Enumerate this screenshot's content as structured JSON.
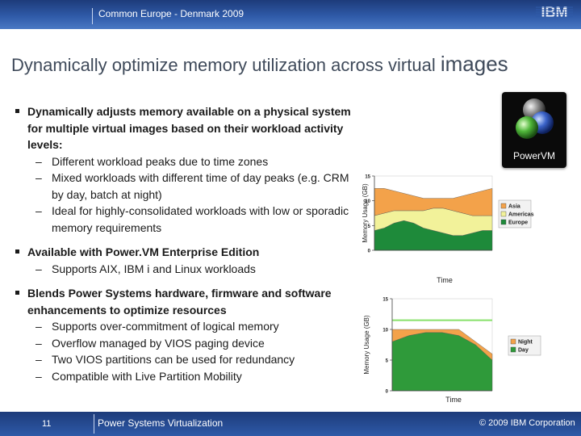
{
  "header": {
    "conference": "Common Europe - Denmark 2009",
    "logo_text": "IBM"
  },
  "slide": {
    "title_main": "Dynamically optimize memory utilization across virtual",
    "title_end": "images"
  },
  "bullets": [
    {
      "text": "Dynamically adjusts memory available on a physical system for multiple virtual images based on their workload activity levels:",
      "subs": [
        "Different workload peaks due to time zones",
        "Mixed workloads with different time of day peaks (e.g. CRM by day, batch at night)",
        "Ideal for highly-consolidated workloads with low or sporadic memory requirements"
      ]
    },
    {
      "text": "Available with Power.VM Enterprise Edition",
      "subs": [
        "Supports AIX, IBM i and Linux workloads"
      ]
    },
    {
      "text": "Blends Power Systems hardware, firmware and software enhancements to optimize resources",
      "subs": [
        "Supports over-commitment of logical memory",
        "Overflow managed by VIOS paging device",
        "Two VIOS partitions can be used for redundancy",
        "Compatible with Live Partition Mobility"
      ]
    }
  ],
  "badge": {
    "label": "PowerVM"
  },
  "colors": {
    "europe": "#1e8a3a",
    "americas": "#f2f29a",
    "asia": "#f3a24a",
    "night": "#f3a24a",
    "day": "#2f9a3a",
    "limit": "#88e06a",
    "bar": "#2a55a4"
  },
  "chart_data": [
    {
      "type": "area",
      "stacked": true,
      "xlabel": "Time",
      "ylabel": "Memory Usage (GB)",
      "ylim": [
        0,
        15
      ],
      "yticks": [
        {
          "v": 0,
          "label": "0"
        },
        {
          "v": 5,
          "label": "5"
        },
        {
          "v": 10,
          "label": "10"
        },
        {
          "v": 15,
          "label": "15"
        }
      ],
      "x": [
        0,
        1,
        2,
        3,
        4,
        5,
        6,
        7,
        8,
        9,
        10,
        11,
        12
      ],
      "series": [
        {
          "name": "Europe",
          "color": "#1e8a3a",
          "values": [
            4,
            4.5,
            5.5,
            6,
            5.5,
            4.5,
            4,
            3.5,
            3,
            3,
            3.5,
            4,
            4
          ]
        },
        {
          "name": "Americas",
          "color": "#f2f29a",
          "values": [
            3,
            3,
            2.5,
            2,
            2.5,
            3.5,
            4.5,
            5,
            5,
            4.5,
            3.5,
            3,
            3
          ]
        },
        {
          "name": "Asia",
          "color": "#f3a24a",
          "values": [
            5.5,
            5,
            4,
            3.5,
            3,
            2.5,
            2,
            2,
            2.5,
            3.5,
            4.5,
            5,
            5.5
          ]
        }
      ],
      "legend_position": "right"
    },
    {
      "type": "area",
      "stacked": true,
      "xlabel": "Time",
      "ylabel": "Memory Usage (GB)",
      "ylim": [
        0,
        15
      ],
      "yticks": [
        {
          "v": 0,
          "label": "0"
        },
        {
          "v": 5,
          "label": "5"
        },
        {
          "v": 10,
          "label": "10"
        },
        {
          "v": 15,
          "label": "15"
        }
      ],
      "x": [
        0,
        1,
        2,
        3,
        4,
        5,
        6
      ],
      "series": [
        {
          "name": "Day",
          "color": "#2f9a3a",
          "values": [
            8,
            9,
            9.5,
            9.5,
            9,
            7.5,
            5
          ]
        },
        {
          "name": "Night",
          "color": "#f3a24a",
          "values": [
            2,
            1,
            0.5,
            0.5,
            1,
            0.5,
            1
          ]
        }
      ],
      "reference_line": {
        "value": 11.5,
        "color": "#88e06a"
      },
      "legend_position": "right"
    }
  ],
  "footer": {
    "page_number": "11",
    "title": "Power Systems Virtualization",
    "copyright": "© 2009 IBM Corporation"
  }
}
